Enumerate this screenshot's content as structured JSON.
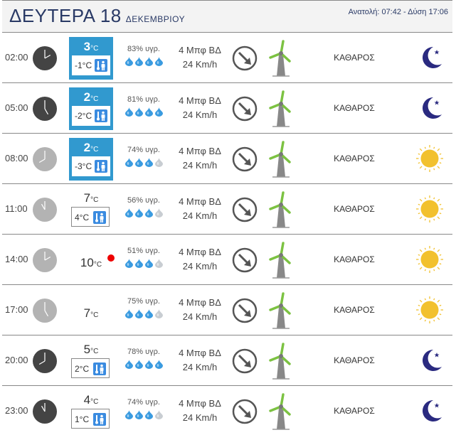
{
  "header": {
    "day": "ΔΕΥΤΕΡΑ 18",
    "month": "ΔΕΚΕΜΒΡΙΟΥ",
    "sun": "Ανατολή: 07:42  - Δύση 17:06"
  },
  "colors": {
    "blue": "#3199cf",
    "header_text": "#2a3a66",
    "drop": "#3a9be0",
    "drop_off": "#c8cdd2",
    "moon": "#2a2a80",
    "sun": "#f2c12e",
    "mill": "#7cc242"
  },
  "rows": [
    {
      "time": "02:00",
      "night": true,
      "temp": "3",
      "unit": "°C",
      "feels": "-1°C",
      "style": "blue",
      "humidity": "83% υγρ.",
      "drops": 4,
      "wind": "4 Μπφ ΒΔ",
      "speed": "24 Km/h",
      "condition": "ΚΑΘΑΡΟΣ",
      "icon": "moon-icon"
    },
    {
      "time": "05:00",
      "night": true,
      "temp": "2",
      "unit": "°C",
      "feels": "-2°C",
      "style": "blue",
      "humidity": "81% υγρ.",
      "drops": 4,
      "wind": "4 Μπφ ΒΔ",
      "speed": "24 Km/h",
      "condition": "ΚΑΘΑΡΟΣ",
      "icon": "moon-icon"
    },
    {
      "time": "08:00",
      "night": false,
      "temp": "2",
      "unit": "°C",
      "feels": "-3°C",
      "style": "blue",
      "humidity": "74% υγρ.",
      "drops": 3,
      "wind": "4 Μπφ ΒΔ",
      "speed": "24 Km/h",
      "condition": "ΚΑΘΑΡΟΣ",
      "icon": "sun-icon"
    },
    {
      "time": "11:00",
      "night": false,
      "temp": "7",
      "unit": "°C",
      "feels": "4°C",
      "style": "outline",
      "humidity": "56% υγρ.",
      "drops": 3,
      "wind": "4 Μπφ ΒΔ",
      "speed": "24 Km/h",
      "condition": "ΚΑΘΑΡΟΣ",
      "icon": "sun-icon"
    },
    {
      "time": "14:00",
      "night": false,
      "temp": "10",
      "unit": "°C",
      "feels": null,
      "style": "plain",
      "max": true,
      "humidity": "51% υγρ.",
      "drops": 3,
      "wind": "4 Μπφ ΒΔ",
      "speed": "24 Km/h",
      "condition": "ΚΑΘΑΡΟΣ",
      "icon": "sun-icon"
    },
    {
      "time": "17:00",
      "night": false,
      "temp": "7",
      "unit": "°C",
      "feels": null,
      "style": "plain",
      "humidity": "75% υγρ.",
      "drops": 3,
      "wind": "4 Μπφ ΒΔ",
      "speed": "24 Km/h",
      "condition": "ΚΑΘΑΡΟΣ",
      "icon": "sun-icon"
    },
    {
      "time": "20:00",
      "night": true,
      "temp": "5",
      "unit": "°C",
      "feels": "2°C",
      "style": "outline",
      "humidity": "78% υγρ.",
      "drops": 4,
      "wind": "4 Μπφ ΒΔ",
      "speed": "24 Km/h",
      "condition": "ΚΑΘΑΡΟΣ",
      "icon": "moon-icon"
    },
    {
      "time": "23:00",
      "night": true,
      "temp": "4",
      "unit": "°C",
      "feels": "1°C",
      "style": "outline",
      "humidity": "74% υγρ.",
      "drops": 3,
      "wind": "4 Μπφ ΒΔ",
      "speed": "24 Km/h",
      "condition": "ΚΑΘΑΡΟΣ",
      "icon": "moon-icon"
    }
  ]
}
